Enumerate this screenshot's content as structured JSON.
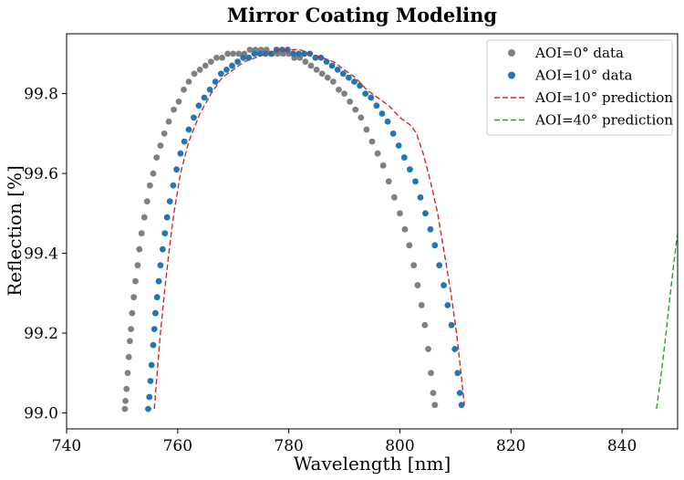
{
  "chart_data": {
    "type": "scatter",
    "title": "Mirror Coating Modeling",
    "xlabel": "Wavelength [nm]",
    "ylabel": "Reflection [%]",
    "xlim": [
      740,
      850
    ],
    "ylim": [
      98.96,
      99.95
    ],
    "xticks": [
      740,
      760,
      780,
      800,
      820,
      840
    ],
    "yticks": [
      99.0,
      99.2,
      99.4,
      99.6,
      99.8
    ],
    "xtick_labels": [
      "740",
      "760",
      "780",
      "800",
      "820",
      "840"
    ],
    "ytick_labels": [
      "99.0",
      "99.2",
      "99.4",
      "99.6",
      "99.8"
    ],
    "grid": false,
    "legend_position": "top-right",
    "series": [
      {
        "name": "AOI=0° data",
        "kind": "scatter",
        "color": "#808080",
        "points": [
          [
            750.5,
            99.01
          ],
          [
            750.6,
            99.03
          ],
          [
            750.8,
            99.06
          ],
          [
            751.0,
            99.1
          ],
          [
            751.2,
            99.14
          ],
          [
            751.4,
            99.18
          ],
          [
            751.6,
            99.21
          ],
          [
            751.8,
            99.25
          ],
          [
            752.1,
            99.29
          ],
          [
            752.4,
            99.33
          ],
          [
            752.8,
            99.37
          ],
          [
            753.1,
            99.41
          ],
          [
            753.5,
            99.45
          ],
          [
            754.0,
            99.49
          ],
          [
            754.5,
            99.53
          ],
          [
            755.0,
            99.57
          ],
          [
            755.6,
            99.6
          ],
          [
            756.2,
            99.64
          ],
          [
            756.9,
            99.67
          ],
          [
            757.6,
            99.7
          ],
          [
            758.4,
            99.73
          ],
          [
            759.3,
            99.76
          ],
          [
            760.2,
            99.78
          ],
          [
            761.1,
            99.81
          ],
          [
            762.0,
            99.83
          ],
          [
            763.0,
            99.85
          ],
          [
            764.0,
            99.86
          ],
          [
            765.0,
            99.87
          ],
          [
            766.0,
            99.88
          ],
          [
            767.0,
            99.89
          ],
          [
            768.0,
            99.89
          ],
          [
            769.0,
            99.9
          ],
          [
            770.0,
            99.9
          ],
          [
            771.0,
            99.9
          ],
          [
            772.0,
            99.9
          ],
          [
            773.0,
            99.91
          ],
          [
            774.0,
            99.91
          ],
          [
            775.0,
            99.91
          ],
          [
            776.0,
            99.91
          ],
          [
            777.0,
            99.9
          ],
          [
            778.0,
            99.9
          ],
          [
            779.0,
            99.9
          ],
          [
            780.0,
            99.9
          ],
          [
            781.0,
            99.89
          ],
          [
            782.0,
            99.89
          ],
          [
            783.0,
            99.88
          ],
          [
            784.0,
            99.87
          ],
          [
            785.0,
            99.86
          ],
          [
            786.0,
            99.85
          ],
          [
            787.0,
            99.84
          ],
          [
            788.0,
            99.83
          ],
          [
            789.0,
            99.81
          ],
          [
            790.0,
            99.8
          ],
          [
            791.0,
            99.78
          ],
          [
            792.0,
            99.76
          ],
          [
            793.0,
            99.74
          ],
          [
            794.0,
            99.71
          ],
          [
            795.0,
            99.68
          ],
          [
            796.0,
            99.65
          ],
          [
            797.0,
            99.62
          ],
          [
            798.0,
            99.58
          ],
          [
            799.0,
            99.54
          ],
          [
            800.0,
            99.5
          ],
          [
            800.9,
            99.46
          ],
          [
            801.7,
            99.42
          ],
          [
            802.5,
            99.37
          ],
          [
            803.2,
            99.32
          ],
          [
            803.9,
            99.27
          ],
          [
            804.5,
            99.22
          ],
          [
            805.1,
            99.16
          ],
          [
            805.6,
            99.1
          ],
          [
            806.0,
            99.05
          ],
          [
            806.3,
            99.02
          ]
        ]
      },
      {
        "name": "AOI=10° data",
        "kind": "scatter",
        "color": "#1f77b4",
        "points": [
          [
            754.7,
            99.01
          ],
          [
            754.9,
            99.04
          ],
          [
            755.1,
            99.08
          ],
          [
            755.3,
            99.12
          ],
          [
            755.6,
            99.17
          ],
          [
            755.8,
            99.21
          ],
          [
            756.0,
            99.25
          ],
          [
            756.3,
            99.29
          ],
          [
            756.6,
            99.33
          ],
          [
            756.9,
            99.37
          ],
          [
            757.3,
            99.41
          ],
          [
            757.7,
            99.45
          ],
          [
            758.1,
            99.49
          ],
          [
            758.6,
            99.53
          ],
          [
            759.2,
            99.57
          ],
          [
            759.8,
            99.61
          ],
          [
            760.5,
            99.65
          ],
          [
            761.2,
            99.68
          ],
          [
            762.0,
            99.71
          ],
          [
            762.9,
            99.74
          ],
          [
            763.8,
            99.77
          ],
          [
            764.8,
            99.79
          ],
          [
            765.8,
            99.81
          ],
          [
            766.8,
            99.83
          ],
          [
            767.8,
            99.85
          ],
          [
            768.8,
            99.86
          ],
          [
            769.8,
            99.87
          ],
          [
            770.8,
            99.88
          ],
          [
            771.8,
            99.89
          ],
          [
            772.8,
            99.89
          ],
          [
            773.8,
            99.9
          ],
          [
            774.8,
            99.9
          ],
          [
            775.8,
            99.9
          ],
          [
            776.8,
            99.9
          ],
          [
            777.8,
            99.91
          ],
          [
            778.8,
            99.91
          ],
          [
            779.8,
            99.91
          ],
          [
            780.8,
            99.9
          ],
          [
            781.8,
            99.9
          ],
          [
            782.8,
            99.9
          ],
          [
            783.8,
            99.9
          ],
          [
            784.8,
            99.89
          ],
          [
            785.8,
            99.89
          ],
          [
            786.8,
            99.88
          ],
          [
            787.8,
            99.87
          ],
          [
            788.8,
            99.86
          ],
          [
            789.8,
            99.85
          ],
          [
            790.8,
            99.84
          ],
          [
            791.8,
            99.83
          ],
          [
            792.8,
            99.82
          ],
          [
            793.8,
            99.8
          ],
          [
            794.8,
            99.79
          ],
          [
            795.8,
            99.77
          ],
          [
            796.8,
            99.75
          ],
          [
            797.8,
            99.73
          ],
          [
            798.8,
            99.7
          ],
          [
            799.8,
            99.67
          ],
          [
            800.8,
            99.64
          ],
          [
            801.8,
            99.61
          ],
          [
            802.8,
            99.58
          ],
          [
            803.7,
            99.54
          ],
          [
            804.6,
            99.5
          ],
          [
            805.5,
            99.46
          ],
          [
            806.3,
            99.42
          ],
          [
            807.1,
            99.37
          ],
          [
            807.9,
            99.32
          ],
          [
            808.6,
            99.27
          ],
          [
            809.3,
            99.22
          ],
          [
            809.9,
            99.16
          ],
          [
            810.4,
            99.1
          ],
          [
            810.8,
            99.05
          ],
          [
            811.1,
            99.02
          ]
        ]
      },
      {
        "name": "AOI=10° prediction",
        "kind": "line",
        "dash": true,
        "color": "#d62728",
        "points": [
          [
            755.8,
            99.01
          ],
          [
            756.3,
            99.1
          ],
          [
            756.9,
            99.2
          ],
          [
            757.6,
            99.3
          ],
          [
            758.4,
            99.4
          ],
          [
            759.3,
            99.5
          ],
          [
            760.5,
            99.6
          ],
          [
            762.0,
            99.68
          ],
          [
            764.0,
            99.75
          ],
          [
            766.0,
            99.8
          ],
          [
            768.0,
            99.84
          ],
          [
            770.0,
            99.86
          ],
          [
            772.0,
            99.88
          ],
          [
            774.0,
            99.89
          ],
          [
            776.0,
            99.9
          ],
          [
            778.0,
            99.91
          ],
          [
            780.0,
            99.91
          ],
          [
            782.0,
            99.91
          ],
          [
            784.0,
            99.9
          ],
          [
            786.0,
            99.89
          ],
          [
            788.0,
            99.88
          ],
          [
            790.0,
            99.86
          ],
          [
            792.0,
            99.84
          ],
          [
            794.0,
            99.81
          ],
          [
            796.0,
            99.79
          ],
          [
            798.0,
            99.77
          ],
          [
            800.0,
            99.74
          ],
          [
            802.0,
            99.72
          ],
          [
            803.0,
            99.7
          ],
          [
            804.2,
            99.65
          ],
          [
            805.5,
            99.58
          ],
          [
            806.8,
            99.5
          ],
          [
            808.0,
            99.4
          ],
          [
            809.2,
            99.3
          ],
          [
            810.2,
            99.2
          ],
          [
            811.0,
            99.1
          ],
          [
            811.6,
            99.02
          ]
        ]
      },
      {
        "name": "AOI=40° prediction",
        "kind": "line",
        "dash": true,
        "color": "#2ca02c",
        "points": [
          [
            846.2,
            99.01
          ],
          [
            846.8,
            99.07
          ],
          [
            847.4,
            99.14
          ],
          [
            848.0,
            99.21
          ],
          [
            848.6,
            99.29
          ],
          [
            849.2,
            99.36
          ],
          [
            849.8,
            99.43
          ],
          [
            850.6,
            99.5
          ]
        ]
      }
    ]
  }
}
